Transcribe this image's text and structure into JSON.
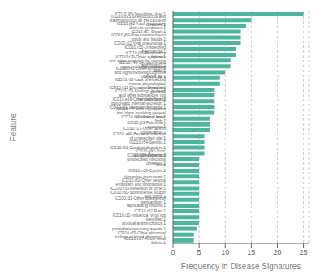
{
  "chart_data": {
    "type": "bar",
    "orientation": "horizontal",
    "xlabel": "Frequency in Disease Signatures",
    "ylabel": "Feature",
    "color": "#4db6a0",
    "xlim": [
      0,
      26
    ],
    "xticks": [
      0,
      5,
      10,
      15,
      20,
      25
    ],
    "grid": true,
    "categories": [
      "ICD10.l89-Decubitus ulcer:1",
      "ICD10.b95-Streptococcus and staphylococcus as the cause of diseases:1",
      "ICD10.j80-Adult respiratory distress syndrome:1",
      "ICD10.r57-Shock:1",
      "ICD10.j69-Pneumonitis due to solids and liquids:1",
      "ICD10.j12-Viral pneumonia:1",
      "ICD10.r31-Unspecified haematuria:1",
      "ICD10.j96-Respiratory failure:1",
      "ICD10.r29-Other symptoms and signs involving the nervous and muscul:1",
      "ICD10.r45-Symptoms and signs involving emotional state:1",
      "ICD10.r41-Other symptoms and signs involving cognitive functions an:1",
      "ICD10.i16:1",
      "ICD10.r62-Lack of expected normal physiological development:1",
      "ICD10.k11-Diseases of salivary glands:1",
      "ICD10.r78-Findings of drugs and other substances, not normally foun:1",
      "ICD10.e16-Other disorders of pancreatic internal secretion:1",
      "ICD10.f01-Vascular dementia:1",
      "ICD10.r44-Other symptoms and signs involving general sensations and:1",
      "ICD10.l97-Ulcer of lower limb:1",
      "ICD10.j81-Pulmonary oedema:1",
      "ICD10.r27-Other lack of coordination:1",
      "ICD10.a49-Bacterial infection of unspecified site:1",
      "ICD10.r54-Senility:1",
      "ICD10.f91-Conduct disorders:1",
      "ICD10.g92-Toxic encephalopathy:1",
      "ICD10.b99-Other and unspecified infectious diseases:1",
      "sex:1",
      "ICD10.n30-Cystitis:1",
      "dopamine.precursors:1",
      "ICD10.i82-Other venous embolism and thrombosis:1",
      "ICD10.r33-Retention of urine:1",
      "ICD10.r60-Somnolence, stupor and coma:1",
      "ICD10.i31-Other diseases of pericardium:1",
      "rapid.acting.insulins:1",
      "ICD10.r52-Pain:1",
      "ICD10.j11-Influenza, virus not identified:1",
      "atypical.antipsychotics:1",
      "phosphate.removing.agents:1",
      "ICD10.r79-Other abnormal findings of blood chemistry:1",
      "ICD10.n17-Acute renal failure:1"
    ],
    "values": [
      25,
      15,
      14,
      13,
      13,
      13,
      12,
      12,
      11,
      11,
      10,
      9,
      9,
      8,
      8,
      8,
      8,
      8,
      7,
      7,
      7,
      6,
      6,
      6,
      6,
      5,
      5,
      5,
      5,
      5,
      5,
      5,
      5,
      5,
      5,
      5,
      5,
      4.5,
      4,
      4
    ]
  }
}
